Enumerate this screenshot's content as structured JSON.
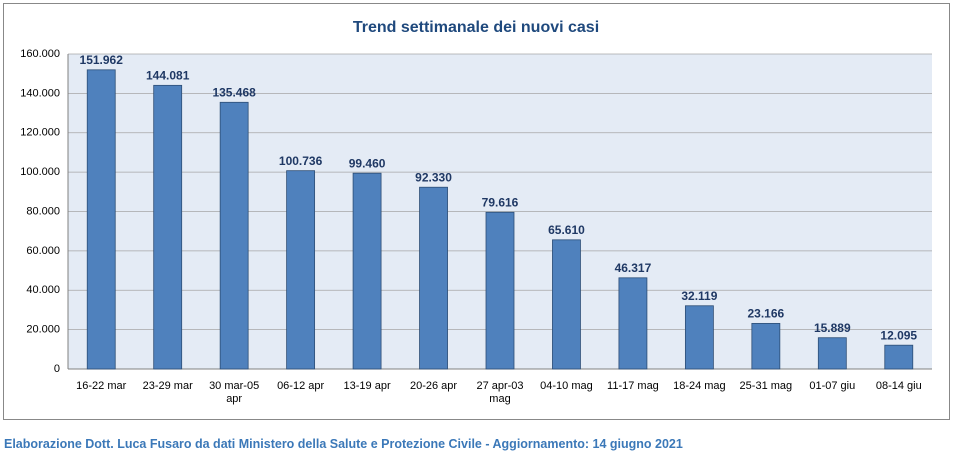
{
  "chart_data": {
    "type": "bar",
    "title": "Trend settimanale dei nuovi casi",
    "categories": [
      "16-22 mar",
      "23-29 mar",
      "30 mar-05 apr",
      "06-12 apr",
      "13-19 apr",
      "20-26 apr",
      "27 apr-03 mag",
      "04-10 mag",
      "11-17 mag",
      "18-24 mag",
      "25-31 mag",
      "01-07 giu",
      "08-14 giu"
    ],
    "values": [
      151962,
      144081,
      135468,
      100736,
      99460,
      92330,
      79616,
      65610,
      46317,
      32119,
      23166,
      15889,
      12095
    ],
    "value_labels": [
      "151.962",
      "144.081",
      "135.468",
      "100.736",
      "99.460",
      "92.330",
      "79.616",
      "65.610",
      "46.317",
      "32.119",
      "23.166",
      "15.889",
      "12.095"
    ],
    "color": "#4f81bd",
    "ylim": [
      0,
      160000
    ],
    "yticks": [
      0,
      {
        "value": 20000,
        "label": "20.000"
      },
      {
        "value": 40000,
        "label": "40.000"
      },
      {
        "value": 60000,
        "label": "60.000"
      },
      {
        "value": 80000,
        "label": "80.000"
      },
      {
        "value": 100000,
        "label": "100.000"
      },
      {
        "value": 120000,
        "label": "120.000"
      },
      {
        "value": 140000,
        "label": "140.000"
      },
      {
        "value": 160000,
        "label": "160.000"
      }
    ],
    "grid": true,
    "source": "Elaborazione Dott. Luca Fusaro da dati Ministero della Salute e Protezione Civile - Aggiornamento: 14 giugno 2021"
  }
}
